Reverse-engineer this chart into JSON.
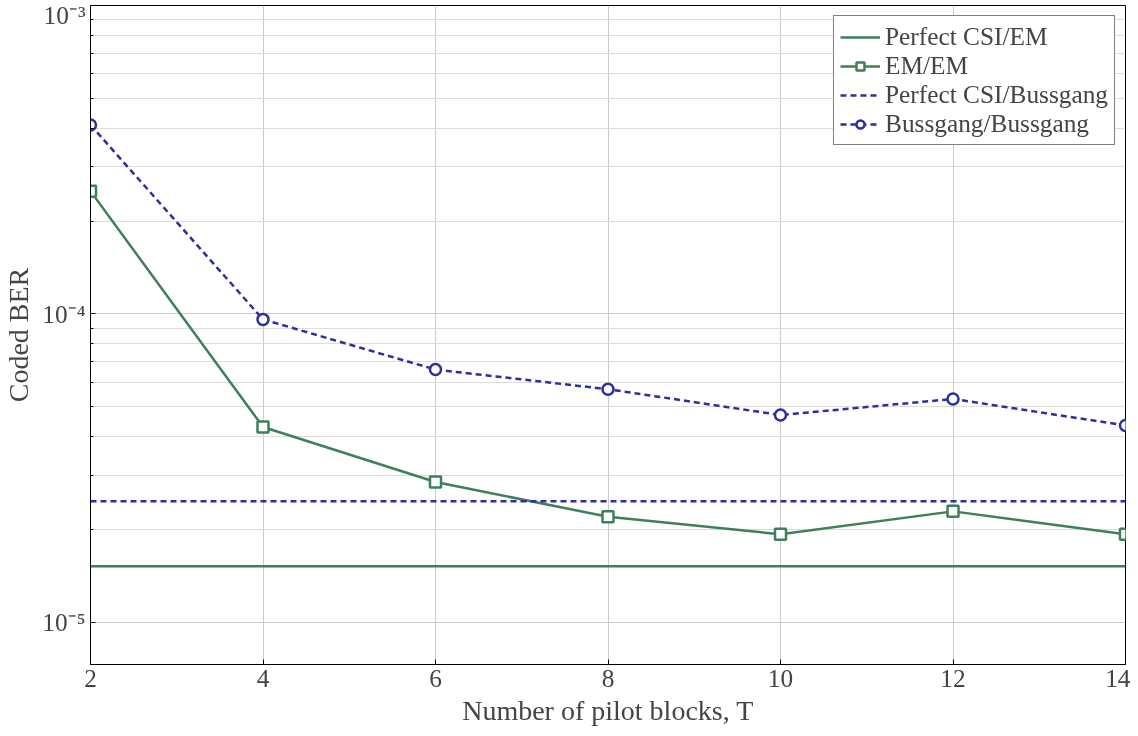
{
  "chart_data": {
    "type": "line",
    "xlabel": "Number of pilot blocks, T",
    "ylabel": "Coded BER",
    "log": "y",
    "grid": true,
    "legend": "top right",
    "x": [
      2,
      4,
      6,
      8,
      10,
      12,
      14
    ],
    "xlim": [
      2,
      14
    ],
    "xticks": [
      2,
      4,
      6,
      8,
      10,
      12,
      14
    ],
    "ylim": [
      7.3e-06,
      0.001
    ],
    "yticks": [
      {
        "value": 1e-05,
        "label": "10⁻⁵"
      },
      {
        "value": 0.0001,
        "label": "10⁻⁴"
      },
      {
        "value": 0.001,
        "label": "10⁻³"
      }
    ],
    "series": [
      {
        "name": "Perfect CSI/EM",
        "color": "#3f7f5a",
        "line_style": "solid",
        "marker": "none",
        "values": [
          1.52e-05,
          1.52e-05,
          1.52e-05,
          1.52e-05,
          1.52e-05,
          1.52e-05,
          1.52e-05
        ]
      },
      {
        "name": "EM/EM",
        "color": "#3f7f5a",
        "line_style": "solid",
        "marker": "square",
        "values": [
          0.00025,
          4.3e-05,
          2.85e-05,
          2.2e-05,
          1.93e-05,
          2.29e-05,
          1.93e-05
        ]
      },
      {
        "name": "Perfect CSI/Bussgang",
        "color": "#2e2e9e",
        "line_style": "dashed",
        "marker": "none",
        "values": [
          2.47e-05,
          2.47e-05,
          2.47e-05,
          2.47e-05,
          2.47e-05,
          2.47e-05,
          2.47e-05
        ]
      },
      {
        "name": "Bussgang/Bussgang",
        "color": "#2e2e9e",
        "line_style": "dashed",
        "marker": "circle",
        "values": [
          0.00041,
          9.6e-05,
          6.6e-05,
          5.7e-05,
          4.7e-05,
          5.3e-05,
          4.35e-05
        ]
      }
    ]
  }
}
